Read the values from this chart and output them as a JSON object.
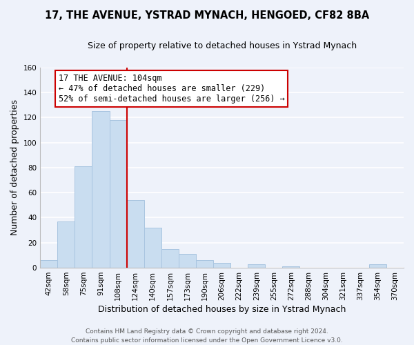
{
  "title": "17, THE AVENUE, YSTRAD MYNACH, HENGOED, CF82 8BA",
  "subtitle": "Size of property relative to detached houses in Ystrad Mynach",
  "xlabel": "Distribution of detached houses by size in Ystrad Mynach",
  "ylabel": "Number of detached properties",
  "bar_labels": [
    "42sqm",
    "58sqm",
    "75sqm",
    "91sqm",
    "108sqm",
    "124sqm",
    "140sqm",
    "157sqm",
    "173sqm",
    "190sqm",
    "206sqm",
    "222sqm",
    "239sqm",
    "255sqm",
    "272sqm",
    "288sqm",
    "304sqm",
    "321sqm",
    "337sqm",
    "354sqm",
    "370sqm"
  ],
  "bar_values": [
    6,
    37,
    81,
    125,
    118,
    54,
    32,
    15,
    11,
    6,
    4,
    0,
    3,
    0,
    1,
    0,
    0,
    0,
    0,
    3,
    0
  ],
  "bar_color": "#c9ddf0",
  "bar_edge_color": "#a8c4e0",
  "vline_x": 4.5,
  "vline_color": "#cc0000",
  "annotation_text": "17 THE AVENUE: 104sqm\n← 47% of detached houses are smaller (229)\n52% of semi-detached houses are larger (256) →",
  "annotation_box_color": "white",
  "annotation_box_edge_color": "#cc0000",
  "ylim": [
    0,
    160
  ],
  "yticks": [
    0,
    20,
    40,
    60,
    80,
    100,
    120,
    140,
    160
  ],
  "footer_line1": "Contains HM Land Registry data © Crown copyright and database right 2024.",
  "footer_line2": "Contains public sector information licensed under the Open Government Licence v3.0.",
  "background_color": "#eef2fa",
  "plot_bg_color": "#eef2fa",
  "grid_color": "white",
  "title_fontsize": 10.5,
  "subtitle_fontsize": 9,
  "axis_label_fontsize": 9,
  "tick_fontsize": 7.5,
  "annotation_fontsize": 8.5,
  "footer_fontsize": 6.5
}
